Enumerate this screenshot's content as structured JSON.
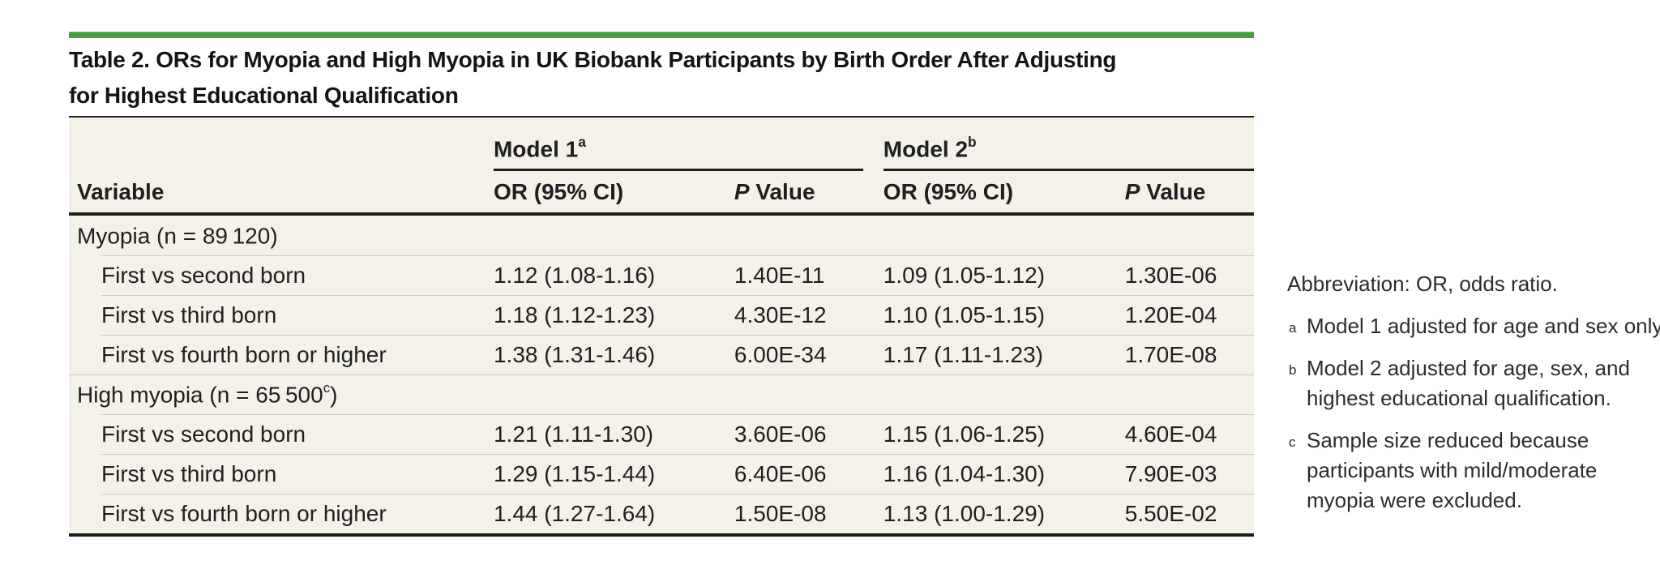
{
  "page": {
    "title_line1": "Table 2. ORs for Myopia and High Myopia in UK Biobank Participants by Birth Order After Adjusting",
    "title_line2": "for Highest Educational Qualification"
  },
  "table": {
    "group_headers": [
      {
        "label": "Model 1",
        "sup": "a"
      },
      {
        "label": "Model 2",
        "sup": "b"
      }
    ],
    "col_headers": {
      "variable": "Variable",
      "or": "OR (95% CI)",
      "p_italic": "P",
      "p_rest": " Value"
    },
    "rows": [
      {
        "type": "section",
        "pre": "Myopia (n = 89 120)",
        "sup": "",
        "post": ""
      },
      {
        "type": "data",
        "variable": "First vs second born",
        "or1": "1.12 (1.08-1.16)",
        "p1": "1.40E-11",
        "or2": "1.09 (1.05-1.12)",
        "p2": "1.30E-06"
      },
      {
        "type": "data",
        "variable": "First vs third born",
        "or1": "1.18 (1.12-1.23)",
        "p1": "4.30E-12",
        "or2": "1.10 (1.05-1.15)",
        "p2": "1.20E-04"
      },
      {
        "type": "data",
        "variable": "First vs fourth born or higher",
        "or1": "1.38 (1.31-1.46)",
        "p1": "6.00E-34",
        "or2": "1.17 (1.11-1.23)",
        "p2": "1.70E-08"
      },
      {
        "type": "section",
        "pre": "High myopia (n = 65 500",
        "sup": "c",
        "post": ")"
      },
      {
        "type": "data",
        "variable": "First vs second born",
        "or1": "1.21 (1.11-1.30)",
        "p1": "3.60E-06",
        "or2": "1.15 (1.06-1.25)",
        "p2": "4.60E-04"
      },
      {
        "type": "data",
        "variable": "First vs third born",
        "or1": "1.29 (1.15-1.44)",
        "p1": "6.40E-06",
        "or2": "1.16 (1.04-1.30)",
        "p2": "7.90E-03"
      },
      {
        "type": "data",
        "variable": "First vs fourth born or higher",
        "or1": "1.44 (1.27-1.64)",
        "p1": "1.50E-08",
        "or2": "1.13 (1.00-1.29)",
        "p2": "5.50E-02"
      }
    ]
  },
  "footnotes": {
    "abbreviation": "Abbreviation: OR, odds ratio.",
    "items": [
      {
        "marker": "a",
        "text": "Model 1 adjusted for age and sex only."
      },
      {
        "marker": "b",
        "text": "Model 2 adjusted for age, sex, and highest educational qualification."
      },
      {
        "marker": "c",
        "text": "Sample size reduced because participants with mild/moderate myopia were excluded."
      }
    ]
  },
  "colors": {
    "accent_green": "#44a03e",
    "table_background": "#f3f1e8",
    "rule_dark": "#1e1e1e",
    "row_separator": "#cfccc1"
  }
}
